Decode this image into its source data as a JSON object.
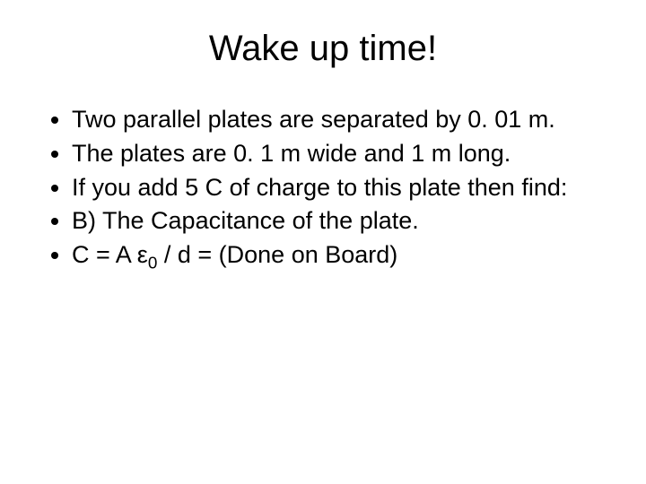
{
  "slide": {
    "background_color": "#ffffff",
    "text_color": "#000000",
    "font_family": "Arial",
    "title": {
      "text": "Wake up time!",
      "fontsize": 40,
      "align": "center"
    },
    "bullets": {
      "fontsize": 27,
      "items": [
        "Two parallel plates are separated by 0. 01 m.",
        "The plates are 0. 1 m wide and 1 m long.",
        "If you add 5 C of charge to this plate then find:",
        "B) The Capacitance of the plate.",
        "C = A ε0 / d = (Done on Board)"
      ],
      "items_html": [
        "Two parallel plates are separated by 0. 01 m.",
        "The plates are 0. 1 m wide and 1 m long.",
        "If you add 5 C of charge to this plate then find:",
        "B) The Capacitance of the plate.",
        "C = A ε<span class=\"sub\">0</span> / d = (Done on Board)"
      ]
    }
  }
}
